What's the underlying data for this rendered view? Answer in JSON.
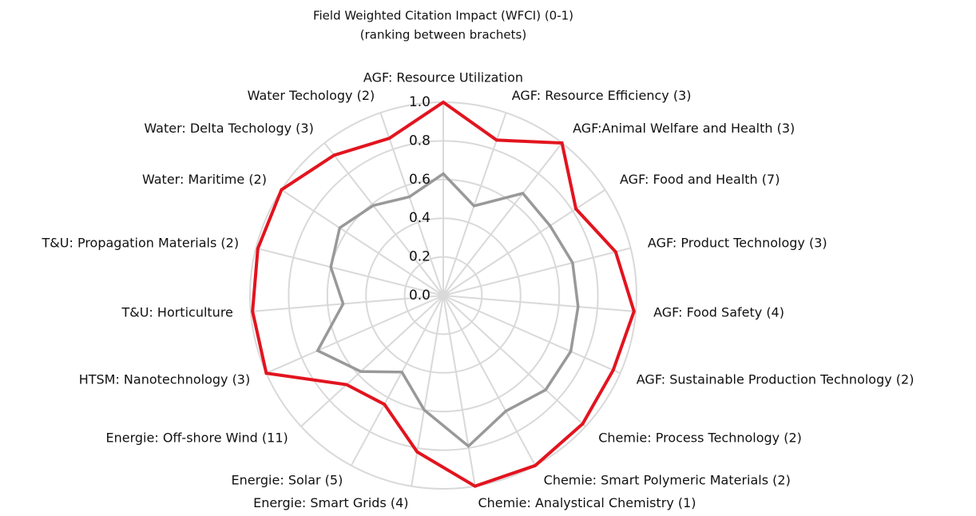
{
  "chart_data": {
    "type": "radar",
    "title": "Field Weighted Citation Impact (WFCI) (0-1)",
    "subtitle": "(ranking between brachets)",
    "categories": [
      "AGF: Resource Utilization",
      "AGF: Resource Efficiency (3)",
      "AGF:Animal Welfare and Health (3)",
      "AGF: Food and Health (7)",
      "AGF: Product Technology (3)",
      "AGF: Food Safety (4)",
      "AGF: Sustainable Production Technology (2)",
      "Chemie: Process Technology (2)",
      "Chemie: Smart Polymeric Materials (2)",
      "Chemie: Analystical Chemistry (1)",
      "Energie: Smart Grids (4)",
      "Energie: Solar (5)",
      "Energie: Off-shore Wind (11)",
      "HTSM: Nanotechnology (3)",
      "T&U: Horticulture",
      "T&U: Propagation Materials (2)",
      "Water: Maritime (2)",
      "Water: Delta Techology (3)",
      "Water Techology (2)"
    ],
    "series": [
      {
        "color": "#e2141f",
        "values": [
          1.0,
          0.85,
          1.0,
          0.82,
          0.92,
          0.99,
          0.96,
          0.98,
          1.0,
          1.0,
          0.82,
          0.64,
          0.68,
          1.0,
          0.99,
          0.99,
          1.0,
          0.92,
          0.86
        ]
      },
      {
        "color": "#999999",
        "values": [
          0.63,
          0.49,
          0.67,
          0.66,
          0.69,
          0.7,
          0.72,
          0.72,
          0.68,
          0.79,
          0.6,
          0.45,
          0.58,
          0.71,
          0.52,
          0.6,
          0.64,
          0.59,
          0.54
        ]
      }
    ],
    "ylim": [
      0,
      1
    ],
    "yticks": [
      {
        "value": 0,
        "label": "0.0"
      },
      {
        "value": 0.2,
        "label": "0.2"
      },
      {
        "value": 0.4,
        "label": "0.4"
      },
      {
        "value": 0.6,
        "label": "0.6"
      },
      {
        "value": 0.8,
        "label": "0.8"
      },
      {
        "value": 1,
        "label": "1.0"
      }
    ],
    "grid": true
  }
}
